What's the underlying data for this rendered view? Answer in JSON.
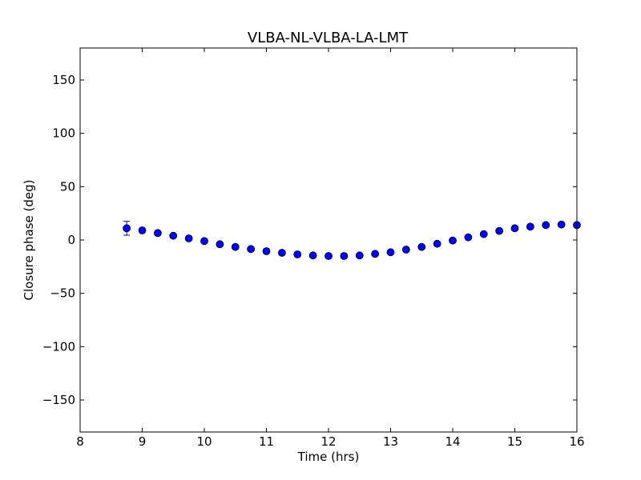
{
  "chart_data": {
    "type": "scatter",
    "title": "VLBA-NL-VLBA-LA-LMT",
    "xlabel": "Time (hrs)",
    "ylabel": "Closure phase (deg)",
    "xlim": [
      8,
      16
    ],
    "ylim": [
      -180,
      180
    ],
    "xticks": [
      8,
      9,
      10,
      11,
      12,
      13,
      14,
      15,
      16
    ],
    "yticks": [
      -150,
      -100,
      -50,
      0,
      50,
      100,
      150
    ],
    "xtick_labels": [
      "8",
      "9",
      "10",
      "11",
      "12",
      "13",
      "14",
      "15",
      "16"
    ],
    "ytick_labels": [
      "−150",
      "−100",
      "−50",
      "0",
      "50",
      "100",
      "150"
    ],
    "grid": false,
    "colors": {
      "marker": "#0000ff",
      "marker_edge": "#000000"
    },
    "points": [
      {
        "x": 8.75,
        "y": 11,
        "err": 6.5
      },
      {
        "x": 9.0,
        "y": 9,
        "err": 1.5
      },
      {
        "x": 9.25,
        "y": 6.5,
        "err": 1.5
      },
      {
        "x": 9.5,
        "y": 4,
        "err": 1.5
      },
      {
        "x": 9.75,
        "y": 1.5,
        "err": 1.5
      },
      {
        "x": 10.0,
        "y": -1,
        "err": 1.5
      },
      {
        "x": 10.25,
        "y": -4,
        "err": 1.5
      },
      {
        "x": 10.5,
        "y": -6.5,
        "err": 1.5
      },
      {
        "x": 10.75,
        "y": -8.5,
        "err": 1.5
      },
      {
        "x": 11.0,
        "y": -10.5,
        "err": 1.5
      },
      {
        "x": 11.25,
        "y": -12,
        "err": 1.5
      },
      {
        "x": 11.5,
        "y": -13.5,
        "err": 1.5
      },
      {
        "x": 11.75,
        "y": -14.5,
        "err": 1.5
      },
      {
        "x": 12.0,
        "y": -15,
        "err": 1.5
      },
      {
        "x": 12.25,
        "y": -15,
        "err": 1.5
      },
      {
        "x": 12.5,
        "y": -14.5,
        "err": 1.5
      },
      {
        "x": 12.75,
        "y": -13,
        "err": 1.5
      },
      {
        "x": 13.0,
        "y": -11.5,
        "err": 1.5
      },
      {
        "x": 13.25,
        "y": -9,
        "err": 1.5
      },
      {
        "x": 13.5,
        "y": -6.5,
        "err": 1.5
      },
      {
        "x": 13.75,
        "y": -3.5,
        "err": 1.5
      },
      {
        "x": 14.0,
        "y": -0.5,
        "err": 1.5
      },
      {
        "x": 14.25,
        "y": 2.5,
        "err": 1.5
      },
      {
        "x": 14.5,
        "y": 5.5,
        "err": 1.5
      },
      {
        "x": 14.75,
        "y": 8.5,
        "err": 1.5
      },
      {
        "x": 15.0,
        "y": 11,
        "err": 1.5
      },
      {
        "x": 15.25,
        "y": 12.5,
        "err": 1.5
      },
      {
        "x": 15.5,
        "y": 14,
        "err": 1.5
      },
      {
        "x": 15.75,
        "y": 14.5,
        "err": 1.5
      },
      {
        "x": 16.0,
        "y": 14,
        "err": 1.5
      }
    ]
  }
}
